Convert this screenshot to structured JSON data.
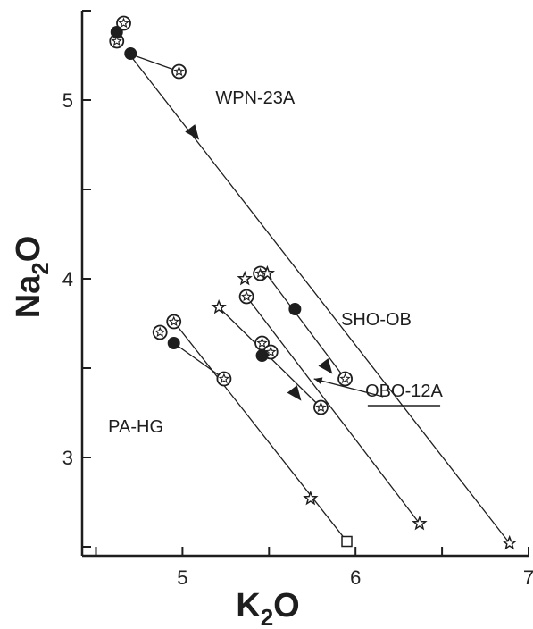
{
  "chart_data": {
    "type": "scatter",
    "xlabel": "K",
    "xlabel_sub": "2",
    "xlabel_tail": "O",
    "ylabel": "Na",
    "ylabel_sub": "2",
    "ylabel_tail": "O",
    "xlim": [
      4.42,
      7.0
    ],
    "ylim": [
      2.45,
      5.5
    ],
    "xticks": [
      5,
      6,
      7
    ],
    "yticks": [
      3,
      4,
      5
    ],
    "grid": false,
    "annotations": [
      {
        "text": "WPN-23A",
        "x": 5.42,
        "y": 4.98
      },
      {
        "text": "SHO-OB",
        "x": 6.12,
        "y": 3.74
      },
      {
        "text": "OBO-12A",
        "x": 6.28,
        "y": 3.34,
        "underline": true
      },
      {
        "text": "PA-HG",
        "x": 4.73,
        "y": 3.14
      }
    ],
    "pointer_arrows": [
      {
        "from": [
          6.16,
          3.34
        ],
        "to": [
          5.76,
          3.44
        ]
      }
    ],
    "lines": [
      {
        "points": [
          [
            4.69,
            5.26
          ],
          [
            6.89,
            2.52
          ]
        ]
      },
      {
        "points": [
          [
            4.69,
            5.26
          ],
          [
            4.98,
            5.16
          ]
        ]
      },
      {
        "points": [
          [
            5.49,
            4.02
          ],
          [
            5.94,
            3.44
          ]
        ]
      },
      {
        "points": [
          [
            5.21,
            3.84
          ],
          [
            5.8,
            3.28
          ]
        ]
      },
      {
        "points": [
          [
            5.37,
            3.9
          ],
          [
            6.37,
            2.63
          ]
        ]
      },
      {
        "points": [
          [
            4.95,
            3.76
          ],
          [
            5.95,
            2.53
          ]
        ]
      },
      {
        "points": [
          [
            4.95,
            3.64
          ],
          [
            5.24,
            3.44
          ]
        ]
      }
    ],
    "arrows": [
      {
        "x": 5.07,
        "y": 4.81,
        "direction": [
          1,
          -1.25
        ]
      },
      {
        "x": 5.84,
        "y": 3.5,
        "direction": [
          1,
          -1.25
        ]
      },
      {
        "x": 5.66,
        "y": 3.35,
        "direction": [
          1,
          -1.25
        ]
      }
    ],
    "series": [
      {
        "marker": "circled-star",
        "points": [
          [
            4.66,
            5.43
          ],
          [
            4.62,
            5.33
          ],
          [
            4.98,
            5.16
          ],
          [
            5.45,
            4.03
          ],
          [
            5.37,
            3.9
          ],
          [
            5.94,
            3.44
          ],
          [
            5.8,
            3.28
          ],
          [
            5.46,
            3.64
          ],
          [
            5.51,
            3.59
          ],
          [
            4.95,
            3.76
          ],
          [
            4.87,
            3.7
          ],
          [
            5.24,
            3.44
          ]
        ]
      },
      {
        "marker": "filled-circle",
        "points": [
          [
            4.62,
            5.38
          ],
          [
            4.7,
            5.26
          ],
          [
            5.65,
            3.83
          ],
          [
            5.46,
            3.57
          ],
          [
            4.95,
            3.64
          ]
        ]
      },
      {
        "marker": "star",
        "points": [
          [
            5.49,
            4.03
          ],
          [
            5.21,
            3.84
          ],
          [
            5.36,
            4.0
          ],
          [
            5.74,
            2.77
          ],
          [
            6.37,
            2.63
          ],
          [
            6.89,
            2.52
          ]
        ]
      },
      {
        "marker": "open-square",
        "points": [
          [
            5.95,
            2.53
          ]
        ]
      }
    ]
  }
}
